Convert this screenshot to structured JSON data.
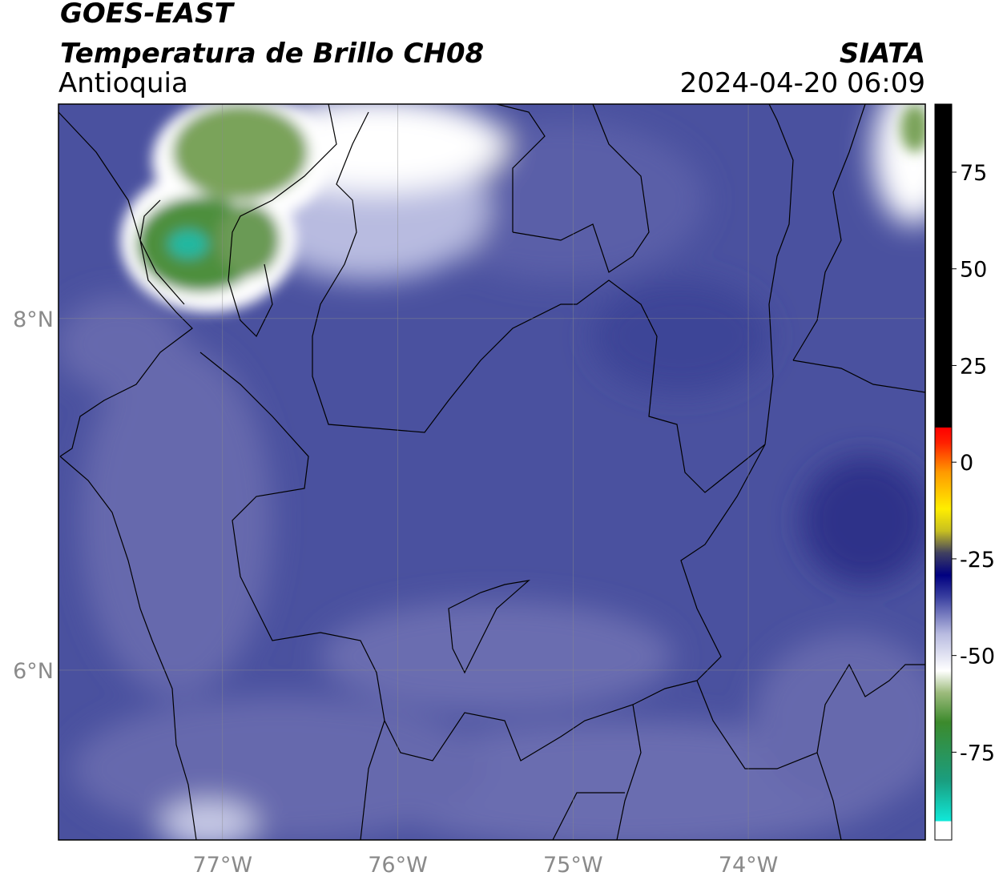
{
  "header": {
    "title": "GOES-EAST",
    "subtitle": "Temperatura de Brillo CH08",
    "region": "Antioquia",
    "source": "SIATA",
    "datetime": "2024-04-20 06:09"
  },
  "map": {
    "xlim": [
      -77.936,
      -72.99
    ],
    "ylim": [
      5.034,
      9.22
    ],
    "xticks": [
      {
        "value": -77,
        "label": "77°W"
      },
      {
        "value": -76,
        "label": "76°W"
      },
      {
        "value": -75,
        "label": "75°W"
      },
      {
        "value": -74,
        "label": "74°W"
      }
    ],
    "yticks": [
      {
        "value": 8,
        "label": "8°N"
      },
      {
        "value": 6,
        "label": "6°N"
      }
    ],
    "grid": true
  },
  "colorbar": {
    "lim": [
      -97.7,
      92.6
    ],
    "ticks": [
      75,
      50,
      25,
      0,
      -25,
      -50,
      -75
    ]
  }
}
